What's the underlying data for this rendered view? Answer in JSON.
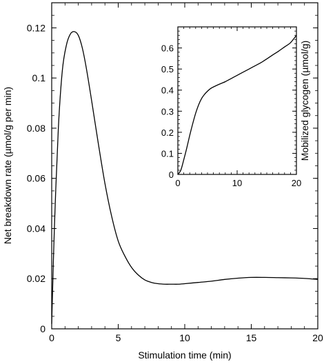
{
  "chart_data": [
    {
      "type": "line",
      "title": "",
      "xlabel": "Stimulation time (min)",
      "ylabel": "Net breakdown rate (µmol/g per min)",
      "xlim": [
        0,
        20
      ],
      "ylim": [
        0,
        0.13
      ],
      "xticks": [
        0,
        5,
        10,
        15,
        20
      ],
      "xtick_labels": [
        "0",
        "5",
        "10",
        "15",
        "20"
      ],
      "yticks": [
        0,
        0.02,
        0.04,
        0.06,
        0.08,
        0.1,
        0.12
      ],
      "ytick_labels": [
        "0",
        "0.02",
        "0.04",
        "0.06",
        "0.08",
        "0.1",
        "0.12"
      ],
      "grid": false,
      "series": [
        {
          "color": "#000000",
          "x": [
            0,
            0.2,
            0.5,
            0.8,
            1.1,
            1.4,
            1.7,
            2.0,
            2.3,
            2.6,
            3.0,
            3.5,
            4.0,
            4.5,
            5.0,
            5.5,
            6.0,
            6.5,
            7.0,
            7.5,
            8.0,
            8.5,
            9.0,
            9.5,
            10.0,
            11.0,
            12.0,
            13.0,
            14.0,
            15.0,
            16.0,
            17.0,
            18.0,
            19.0,
            20.0
          ],
          "y": [
            0.002,
            0.04,
            0.08,
            0.103,
            0.113,
            0.1175,
            0.1185,
            0.117,
            0.112,
            0.104,
            0.091,
            0.074,
            0.058,
            0.045,
            0.035,
            0.029,
            0.0245,
            0.0215,
            0.0195,
            0.0185,
            0.018,
            0.0178,
            0.0178,
            0.0178,
            0.018,
            0.0185,
            0.019,
            0.0197,
            0.0202,
            0.0205,
            0.0205,
            0.0204,
            0.0203,
            0.0201,
            0.0197
          ]
        }
      ]
    },
    {
      "type": "line",
      "title": "",
      "xlabel": "",
      "ylabel": "Mobilized glycogen (µmol/g)",
      "xlim": [
        0,
        20
      ],
      "ylim": [
        0,
        0.7
      ],
      "xticks": [
        0,
        10,
        20
      ],
      "xtick_labels": [
        "0",
        "10",
        "20"
      ],
      "yticks": [
        0,
        0.1,
        0.2,
        0.3,
        0.4,
        0.5,
        0.6
      ],
      "ytick_labels": [
        "0",
        "0.1",
        "0.2",
        "0.3",
        "0.4",
        "0.5",
        "0.6"
      ],
      "grid": false,
      "series": [
        {
          "color": "#000000",
          "x": [
            0,
            0.5,
            1.0,
            1.5,
            2.0,
            2.5,
            3.0,
            3.5,
            4.0,
            4.5,
            5.0,
            5.5,
            6.0,
            7.0,
            8.0,
            9.0,
            10.0,
            11.0,
            12.0,
            13.0,
            14.0,
            15.0,
            16.0,
            17.0,
            18.0,
            19.0,
            20.0
          ],
          "y": [
            0,
            0.02,
            0.07,
            0.125,
            0.185,
            0.24,
            0.29,
            0.33,
            0.36,
            0.38,
            0.395,
            0.407,
            0.415,
            0.428,
            0.44,
            0.455,
            0.47,
            0.485,
            0.5,
            0.515,
            0.53,
            0.548,
            0.567,
            0.585,
            0.605,
            0.625,
            0.66
          ]
        }
      ]
    }
  ]
}
